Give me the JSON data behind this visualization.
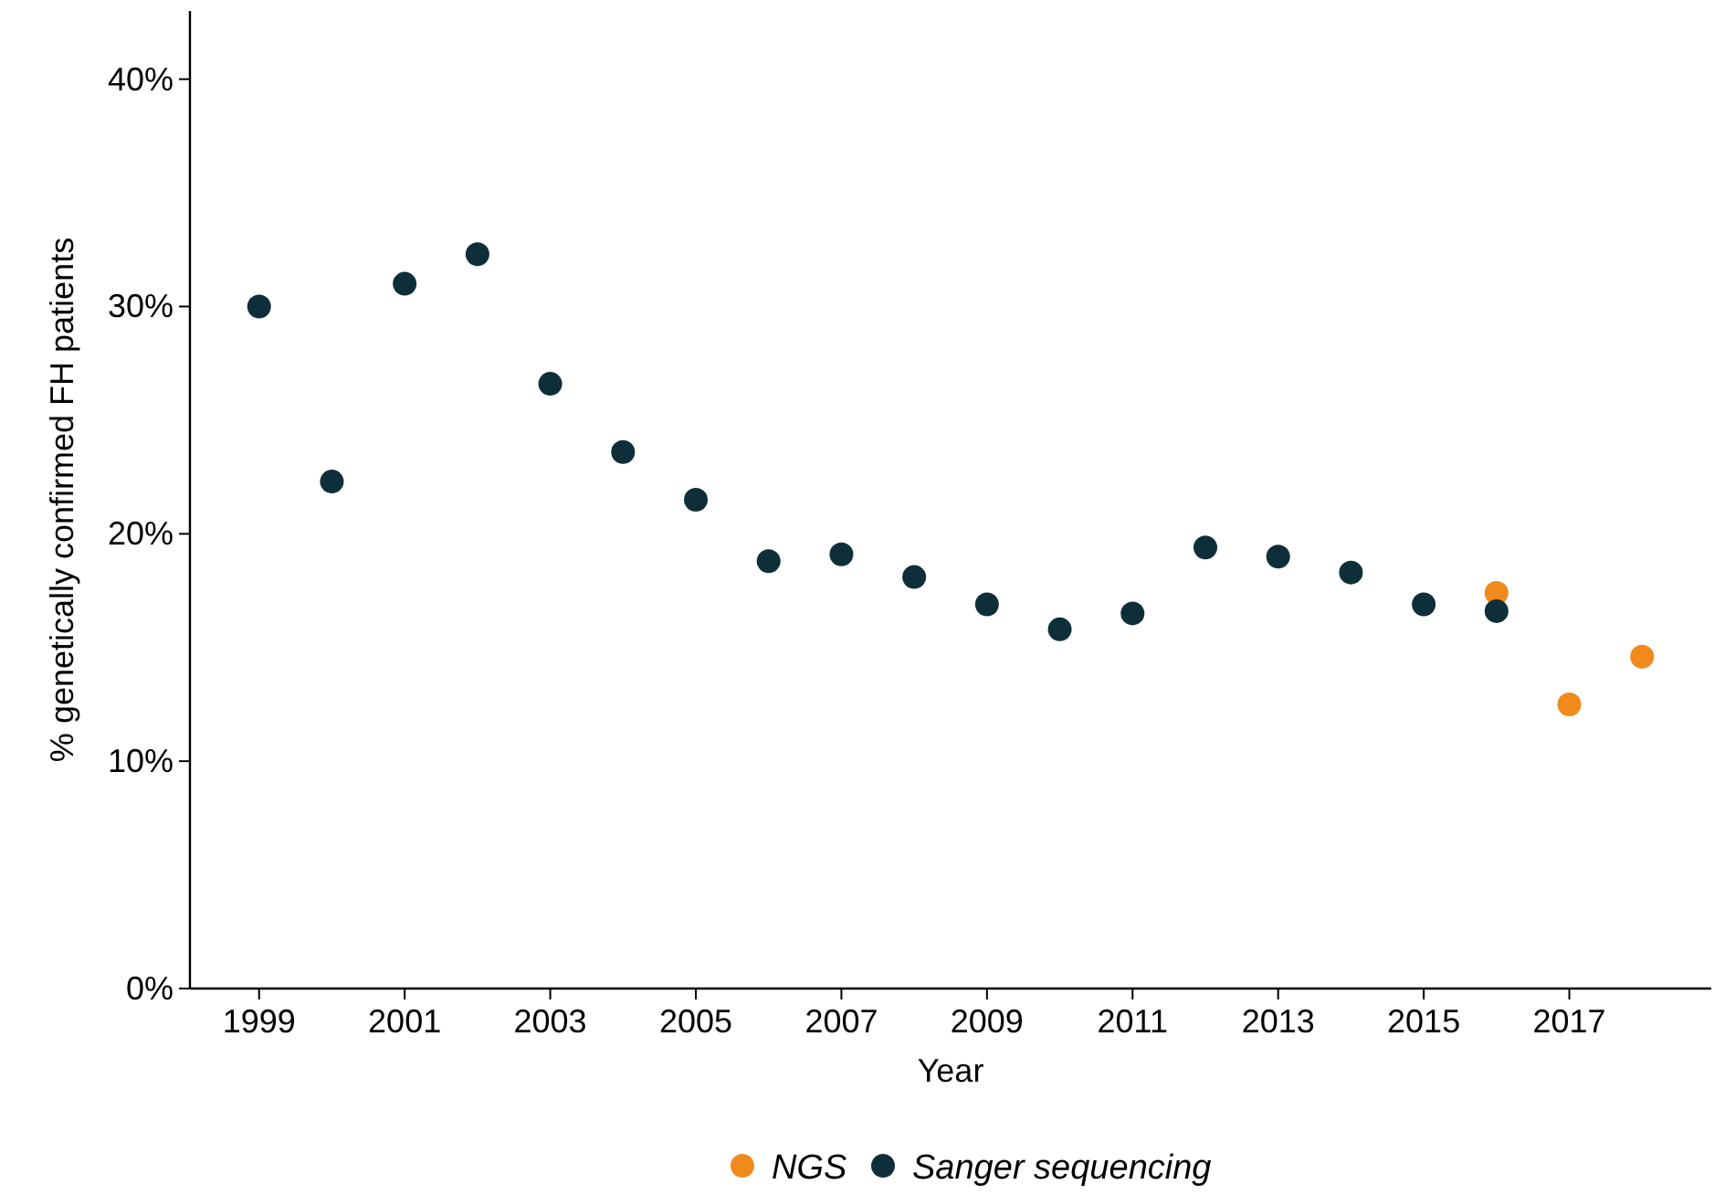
{
  "chart_data": {
    "type": "scatter",
    "xlabel": "Year",
    "ylabel": "% genetically confirmed FH patients",
    "xlim": [
      1998.05,
      2018.95
    ],
    "xticks": [
      1999,
      2001,
      2003,
      2005,
      2007,
      2009,
      2011,
      2013,
      2015,
      2017
    ],
    "ylim": [
      0,
      43
    ],
    "yticks": [
      {
        "value": 0,
        "label": "0%"
      },
      {
        "value": 10,
        "label": "10%"
      },
      {
        "value": 20,
        "label": "20%"
      },
      {
        "value": 30,
        "label": "30%"
      },
      {
        "value": 40,
        "label": "40%"
      }
    ],
    "grid": false,
    "legend": "bottom",
    "marker": "circle",
    "series": [
      {
        "name": "NGS",
        "color": "#f08a1c",
        "x": [
          2016,
          2017,
          2018
        ],
        "values": [
          17.4,
          12.5,
          14.6
        ]
      },
      {
        "name": "Sanger sequencing",
        "color": "#0e2f3a",
        "x": [
          1999,
          2000,
          2001,
          2002,
          2003,
          2004,
          2005,
          2006,
          2007,
          2008,
          2009,
          2010,
          2011,
          2012,
          2013,
          2014,
          2015,
          2016
        ],
        "values": [
          30.0,
          22.3,
          31.0,
          32.3,
          26.6,
          23.6,
          21.5,
          18.8,
          19.1,
          18.1,
          16.9,
          15.8,
          16.5,
          19.4,
          19.0,
          18.3,
          16.9,
          16.6
        ]
      }
    ]
  }
}
